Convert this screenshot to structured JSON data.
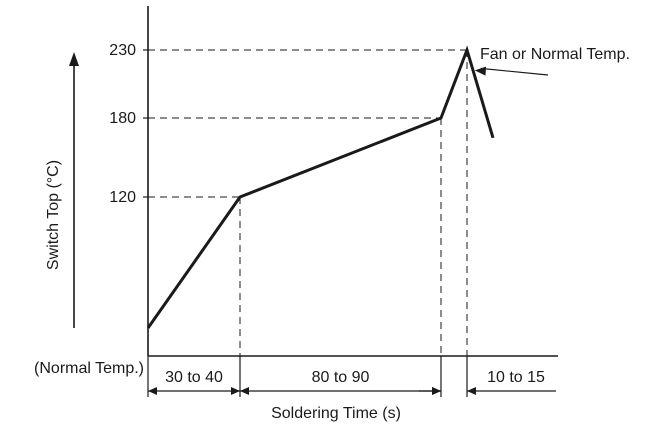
{
  "chart_data": {
    "type": "line",
    "ylabel": "Switch Top (°C)",
    "xlabel": "Soldering Time (s)",
    "y_origin_label": "(Normal Temp.)",
    "y_ticks": [
      {
        "value": 120,
        "label": "120"
      },
      {
        "value": 180,
        "label": "180"
      },
      {
        "value": 230,
        "label": "230"
      }
    ],
    "profile_points": [
      {
        "x": 0,
        "y": 35
      },
      {
        "x": 35,
        "y": 120
      },
      {
        "x": 120,
        "y": 180
      },
      {
        "x": 130,
        "y": 230
      },
      {
        "x": 140,
        "y": 165
      }
    ],
    "x_range": [
      0,
      150
    ],
    "y_range": [
      20,
      260
    ],
    "time_segments": [
      {
        "label": "30 to 40",
        "start": 0,
        "end": 35
      },
      {
        "label": "80 to 90",
        "start": 35,
        "end": 120
      },
      {
        "label": "10 to 15",
        "start": 120,
        "end": 130
      }
    ],
    "annotation": {
      "text": "Fan or Normal Temp.",
      "target": {
        "x": 133,
        "y": 215
      }
    },
    "grid": false
  }
}
